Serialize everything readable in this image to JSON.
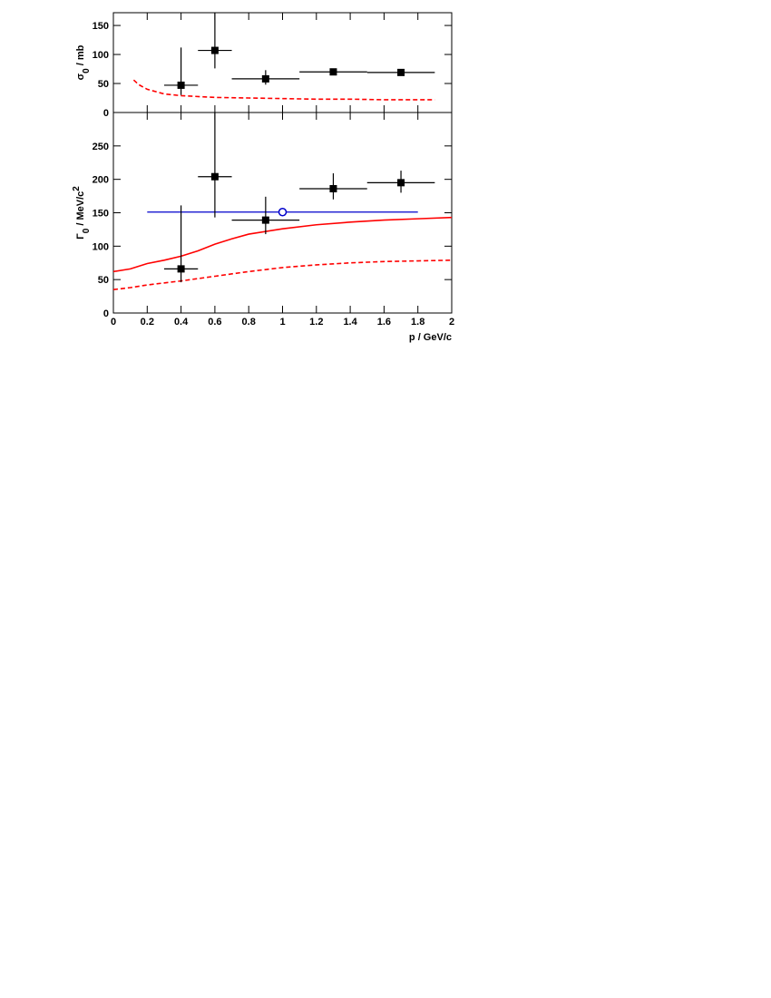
{
  "chart_data": [
    {
      "type": "scatter",
      "ylabel": {
        "symbol": "σ",
        "subscript": "0",
        "unit": " / mb"
      },
      "xlim": [
        0,
        2
      ],
      "xticks": [
        0,
        0.2,
        0.4,
        0.6,
        0.8,
        1,
        1.2,
        1.4,
        1.6,
        1.8,
        2
      ],
      "ylim": [
        0,
        172
      ],
      "yticks": [
        0,
        50,
        100,
        150
      ],
      "series": [
        {
          "style": "points",
          "marker": "square",
          "color": "#000000",
          "x": [
            0.4,
            0.6,
            0.9,
            1.3,
            1.7
          ],
          "values": [
            47,
            107,
            58,
            70,
            69
          ],
          "xerr": [
            0.1,
            0.1,
            0.2,
            0.2,
            0.2
          ],
          "yerr_low": [
            17,
            31,
            10,
            5,
            3
          ],
          "yerr_high": [
            65,
            70,
            15,
            5,
            3
          ]
        },
        {
          "style": "line",
          "dash": true,
          "color": "#ff0000",
          "x": [
            0.12,
            0.15,
            0.2,
            0.3,
            0.4,
            0.6,
            0.8,
            1.0,
            1.2,
            1.4,
            1.6,
            1.8,
            1.9
          ],
          "values": [
            56,
            48,
            40,
            32,
            29,
            26,
            25,
            24,
            23,
            23,
            22,
            22,
            22
          ]
        }
      ]
    },
    {
      "type": "scatter",
      "ylabel": {
        "symbol": "Γ",
        "subscript": "0",
        "unit": " / MeV/c",
        "superscript": "2"
      },
      "xlabel": "p / GeV/c",
      "xlim": [
        0,
        2
      ],
      "xticks": [
        0,
        0.2,
        0.4,
        0.6,
        0.8,
        1,
        1.2,
        1.4,
        1.6,
        1.8,
        2
      ],
      "ylim": [
        0,
        300
      ],
      "yticks": [
        0,
        50,
        100,
        150,
        200,
        250
      ],
      "series": [
        {
          "style": "line",
          "dash": false,
          "color": "#ff0000",
          "x": [
            0,
            0.1,
            0.2,
            0.3,
            0.4,
            0.5,
            0.6,
            0.7,
            0.8,
            1.0,
            1.2,
            1.4,
            1.6,
            1.8,
            2.0
          ],
          "values": [
            62,
            66,
            74,
            79,
            85,
            93,
            103,
            111,
            118,
            126,
            132,
            136,
            139,
            141,
            143
          ]
        },
        {
          "style": "line",
          "dash": true,
          "color": "#ff0000",
          "x": [
            0,
            0.1,
            0.2,
            0.4,
            0.6,
            0.8,
            1.0,
            1.2,
            1.4,
            1.6,
            1.8,
            2.0
          ],
          "values": [
            35,
            38,
            42,
            48,
            55,
            62,
            68,
            72,
            75,
            77,
            78,
            79
          ]
        },
        {
          "style": "points",
          "marker": "circle-open",
          "color": "#0000cc",
          "x": [
            1.0
          ],
          "values": [
            151
          ],
          "xerr": [
            0.8
          ]
        },
        {
          "style": "points",
          "marker": "square",
          "color": "#000000",
          "x": [
            0.4,
            0.6,
            0.9,
            1.3,
            1.7
          ],
          "values": [
            66,
            204,
            139,
            186,
            195
          ],
          "xerr": [
            0.1,
            0.1,
            0.2,
            0.2,
            0.2
          ],
          "yerr_low": [
            20,
            61,
            21,
            16,
            15
          ],
          "yerr_high": [
            95,
            100,
            35,
            23,
            18
          ]
        }
      ]
    }
  ]
}
